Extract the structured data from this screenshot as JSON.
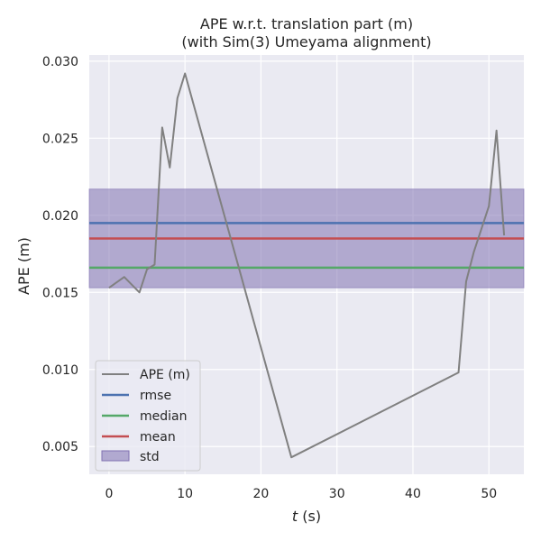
{
  "chart_data": {
    "type": "line",
    "title": "APE w.r.t. translation part (m)",
    "subtitle": "(with Sim(3) Umeyama alignment)",
    "xlabel_italic": "t",
    "xlabel_unit": " (s)",
    "ylabel": "APE (m)",
    "xlim": [
      -2.6,
      54.6
    ],
    "ylim": [
      0.0032,
      0.0304
    ],
    "xticks": [
      0,
      10,
      20,
      30,
      40,
      50
    ],
    "yticks": [
      0.005,
      0.01,
      0.015,
      0.02,
      0.025,
      0.03
    ],
    "ytick_labels": [
      "0.005",
      "0.010",
      "0.015",
      "0.020",
      "0.025",
      "0.030"
    ],
    "grid": true,
    "legend_position": "lower-left",
    "series": [
      {
        "name": "APE (m)",
        "color": "#808080",
        "x": [
          0,
          2,
          4,
          5,
          6,
          7,
          8,
          9,
          10,
          24,
          46,
          47,
          48,
          49,
          50,
          51,
          52
        ],
        "y": [
          0.0153,
          0.016,
          0.015,
          0.0165,
          0.0168,
          0.0257,
          0.0231,
          0.0276,
          0.0292,
          0.0043,
          0.0098,
          0.0157,
          0.0176,
          0.0191,
          0.0206,
          0.0255,
          0.0187
        ]
      }
    ],
    "rmse": {
      "name": "rmse",
      "value": 0.0195,
      "color": "#4c72b0"
    },
    "median": {
      "name": "median",
      "value": 0.0166,
      "color": "#55a868"
    },
    "mean": {
      "name": "mean",
      "value": 0.0185,
      "color": "#c44e52"
    },
    "std": {
      "name": "std",
      "low": 0.0153,
      "high": 0.0217,
      "color": "#8172b2"
    }
  }
}
